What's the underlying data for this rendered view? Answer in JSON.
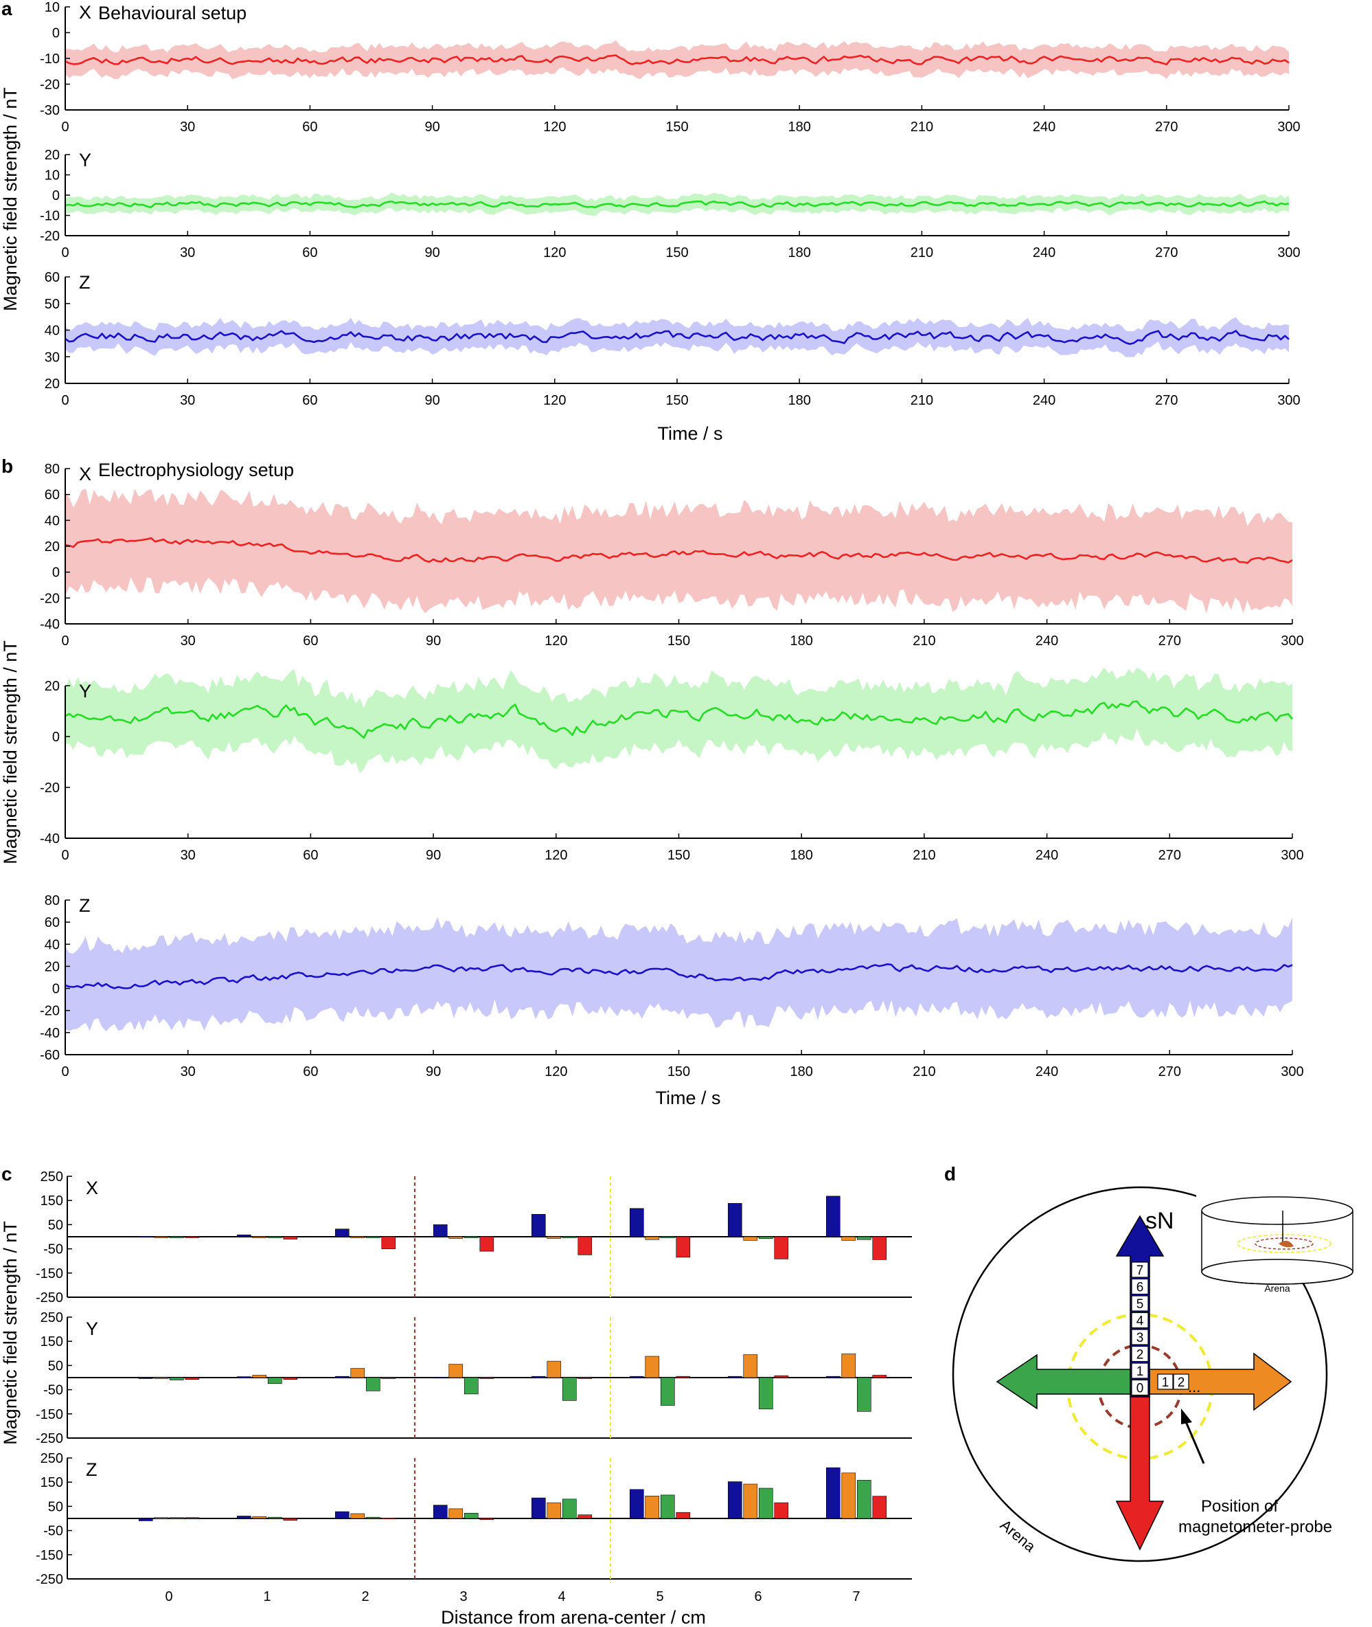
{
  "panels": {
    "a": {
      "letter": "a",
      "title": "Behavioural setup",
      "ylabel": "Magnetic field strength / nT",
      "xlabel": "Time / s",
      "xticks": [
        "0",
        "30",
        "60",
        "90",
        "120",
        "150",
        "180",
        "210",
        "240",
        "270",
        "300"
      ]
    },
    "b": {
      "letter": "b",
      "title": "Electrophysiology setup",
      "ylabel": "Magnetic field strength / nT",
      "xlabel": "Time / s",
      "xticks": [
        "0",
        "30",
        "60",
        "90",
        "120",
        "150",
        "180",
        "210",
        "240",
        "270",
        "300"
      ]
    },
    "c": {
      "letter": "c",
      "ylabel": "Magnetic field strength / nT",
      "xlabel": "Distance from arena-center / cm",
      "xticks": [
        "0",
        "1",
        "2",
        "3",
        "4",
        "5",
        "6",
        "7"
      ],
      "yticks": [
        "250",
        "150",
        "50",
        "-50",
        "-150",
        "-250"
      ]
    },
    "d": {
      "letter": "d",
      "north_label": "sN",
      "arena_label": "Arena",
      "inset_arena_label": "Arena",
      "up_numbers": [
        "7",
        "6",
        "5",
        "4",
        "3",
        "2",
        "1",
        "0"
      ],
      "right_numbers": [
        "1",
        "2"
      ],
      "ellipsis": "...",
      "probe_label_line1": "Position of",
      "probe_label_line2": "magnetometer-probe"
    }
  },
  "colors": {
    "x": "#ee2020",
    "y": "#22dd22",
    "z": "#1a10cc",
    "x_band": "#f7c4c4",
    "y_band": "#c6f6c6",
    "z_band": "#c8c8fb",
    "bar_blue": "#10109a",
    "bar_orange": "#ee8a22",
    "bar_green": "#3aa54a",
    "bar_red": "#e62222"
  },
  "chart_data": [
    {
      "id": "a-x",
      "type": "area",
      "title": "X",
      "x_range": [
        0,
        300
      ],
      "ylim": [
        -30,
        10
      ],
      "yticks": [
        10,
        0,
        -10,
        -20,
        -30
      ],
      "series": [
        {
          "mean": -10.5,
          "sd": 5.5,
          "amp": 1.2
        }
      ]
    },
    {
      "id": "a-y",
      "type": "area",
      "title": "Y",
      "x_range": [
        0,
        300
      ],
      "ylim": [
        -20,
        20
      ],
      "yticks": [
        20,
        10,
        0,
        -10,
        -20
      ],
      "series": [
        {
          "mean": -4.5,
          "sd": 4,
          "amp": 1
        }
      ]
    },
    {
      "id": "a-z",
      "type": "area",
      "title": "Z",
      "x_range": [
        0,
        300
      ],
      "ylim": [
        20,
        60
      ],
      "yticks": [
        60,
        50,
        40,
        30,
        20
      ],
      "series": [
        {
          "mean": 37.5,
          "sd": 5,
          "amp": 1.5
        }
      ]
    },
    {
      "id": "b-x",
      "type": "area",
      "title": "X",
      "x_range": [
        0,
        300
      ],
      "ylim": [
        -40,
        80
      ],
      "yticks": [
        80,
        60,
        40,
        20,
        0,
        -20,
        -40
      ],
      "series": [
        {
          "trend_x": [
            0,
            15,
            45,
            60,
            90,
            120,
            150,
            180,
            210,
            240,
            270,
            285,
            300
          ],
          "trend_y": [
            22,
            25,
            22,
            15,
            10,
            11,
            15,
            13,
            13,
            11,
            14,
            8,
            10
          ],
          "sd": 37,
          "amp": 2
        }
      ]
    },
    {
      "id": "b-y",
      "type": "area",
      "title": "Y",
      "x_range": [
        0,
        300
      ],
      "ylim": [
        -40,
        20
      ],
      "yticks": [
        20,
        0,
        -20,
        -40
      ],
      "series": [
        {
          "trend_x": [
            0,
            30,
            55,
            70,
            90,
            110,
            120,
            140,
            160,
            180,
            200,
            210,
            240,
            260,
            280,
            300
          ],
          "trend_y": [
            9,
            8,
            10,
            1,
            6,
            10,
            1,
            8,
            10,
            8,
            7,
            7,
            9,
            12,
            8,
            6
          ],
          "sd": 14,
          "amp": 2
        }
      ]
    },
    {
      "id": "b-z",
      "type": "area",
      "title": "Z",
      "x_range": [
        0,
        300
      ],
      "ylim": [
        -60,
        80
      ],
      "yticks": [
        80,
        60,
        40,
        20,
        0,
        -20,
        -40,
        -60
      ],
      "series": [
        {
          "trend_x": [
            0,
            30,
            60,
            90,
            120,
            150,
            165,
            180,
            210,
            240,
            300
          ],
          "trend_y": [
            4,
            4,
            12,
            18,
            17,
            14,
            8,
            15,
            19,
            16,
            20
          ],
          "sd": 40,
          "amp": 2.5
        }
      ]
    },
    {
      "id": "c-x",
      "type": "bar",
      "title": "X",
      "categories": [
        "0",
        "1",
        "2",
        "3",
        "4",
        "5",
        "6",
        "7"
      ],
      "ylim": [
        -250,
        250
      ],
      "series": [
        {
          "color": "bar_blue",
          "values": [
            2,
            8,
            32,
            50,
            93,
            117,
            138,
            168
          ]
        },
        {
          "color": "bar_orange",
          "values": [
            0,
            0,
            -2,
            -7,
            -7,
            -12,
            -15,
            -15
          ]
        },
        {
          "color": "bar_green",
          "values": [
            0,
            -3,
            -4,
            -4,
            -4,
            -4,
            -8,
            -12
          ]
        },
        {
          "color": "bar_red",
          "values": [
            0,
            -10,
            -50,
            -60,
            -75,
            -85,
            -92,
            -95
          ]
        }
      ]
    },
    {
      "id": "c-y",
      "type": "bar",
      "title": "Y",
      "categories": [
        "0",
        "1",
        "2",
        "3",
        "4",
        "5",
        "6",
        "7"
      ],
      "ylim": [
        -250,
        250
      ],
      "series": [
        {
          "color": "bar_blue",
          "values": [
            0,
            4,
            5,
            2,
            5,
            5,
            5,
            5
          ]
        },
        {
          "color": "bar_orange",
          "values": [
            0,
            10,
            38,
            55,
            68,
            88,
            95,
            98
          ]
        },
        {
          "color": "bar_green",
          "values": [
            -10,
            -25,
            -55,
            -68,
            -95,
            -115,
            -130,
            -140
          ]
        },
        {
          "color": "bar_red",
          "values": [
            -8,
            -8,
            -4,
            -2,
            -2,
            5,
            8,
            10
          ]
        }
      ]
    },
    {
      "id": "c-z",
      "type": "bar",
      "title": "Z",
      "categories": [
        "0",
        "1",
        "2",
        "3",
        "4",
        "5",
        "6",
        "7"
      ],
      "ylim": [
        -250,
        250
      ],
      "series": [
        {
          "color": "bar_blue",
          "values": [
            -10,
            10,
            28,
            55,
            85,
            120,
            152,
            210
          ]
        },
        {
          "color": "bar_orange",
          "values": [
            4,
            8,
            20,
            40,
            65,
            93,
            142,
            188
          ]
        },
        {
          "color": "bar_green",
          "values": [
            4,
            5,
            5,
            22,
            80,
            97,
            125,
            158
          ]
        },
        {
          "color": "bar_red",
          "values": [
            4,
            -8,
            2,
            -5,
            15,
            25,
            65,
            92
          ]
        }
      ]
    }
  ]
}
